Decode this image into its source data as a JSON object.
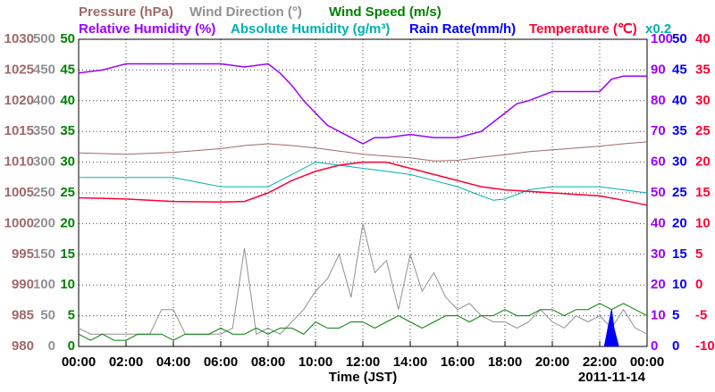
{
  "chart_data": {
    "type": "line",
    "xlabel": "Time (JST)",
    "date_label": "2011-11-14",
    "note": "x0.2",
    "note_color": "#00b0b0",
    "xlim": [
      0,
      24
    ],
    "xticks": [
      {
        "value": 0,
        "label": "00:00"
      },
      {
        "value": 2,
        "label": "02:00"
      },
      {
        "value": 4,
        "label": "04:00"
      },
      {
        "value": 6,
        "label": "06:00"
      },
      {
        "value": 8,
        "label": "08:00"
      },
      {
        "value": 10,
        "label": "10:00"
      },
      {
        "value": 12,
        "label": "12:00"
      },
      {
        "value": 14,
        "label": "14:00"
      },
      {
        "value": 16,
        "label": "16:00"
      },
      {
        "value": 18,
        "label": "18:00"
      },
      {
        "value": 20,
        "label": "20:00"
      },
      {
        "value": 22,
        "label": "22:00"
      },
      {
        "value": 24,
        "label": "00:00"
      }
    ],
    "grid": true,
    "axes": [
      {
        "side": "left",
        "color": "#a06868",
        "ylim": [
          980,
          1030
        ],
        "yticks": [
          980,
          985,
          990,
          995,
          1000,
          1005,
          1010,
          1015,
          1020,
          1025,
          1030
        ]
      },
      {
        "side": "left",
        "color": "#909090",
        "ylim": [
          0,
          500
        ],
        "yticks": [
          0,
          50,
          100,
          150,
          200,
          250,
          300,
          350,
          400,
          450,
          500
        ]
      },
      {
        "side": "left",
        "color": "#008000",
        "ylim": [
          0,
          50
        ],
        "yticks": [
          0,
          5,
          10,
          15,
          20,
          25,
          30,
          35,
          40,
          45,
          50
        ]
      },
      {
        "side": "right",
        "color": "#9900ff",
        "ylim": [
          0,
          100
        ],
        "yticks": [
          0,
          10,
          20,
          30,
          40,
          50,
          60,
          70,
          80,
          90,
          100
        ]
      },
      {
        "side": "right",
        "color": "#0000ff",
        "ylim": [
          0,
          50
        ],
        "yticks": [
          0,
          5,
          10,
          15,
          20,
          25,
          30,
          35,
          40,
          45,
          50
        ]
      },
      {
        "side": "right",
        "color": "#ff0033",
        "ylim": [
          -10,
          40
        ],
        "yticks": [
          -10,
          -5,
          0,
          5,
          10,
          15,
          20,
          25,
          30,
          35,
          40
        ]
      }
    ],
    "series": [
      {
        "name": "Pressure (hPa)",
        "color": "#a06868",
        "axis": 0,
        "x": [
          0,
          2,
          4,
          6,
          7,
          8,
          9,
          10,
          11,
          12,
          13,
          14,
          15,
          16,
          17,
          18,
          19,
          20,
          21,
          22,
          23,
          24
        ],
        "values": [
          1011.5,
          1011.3,
          1011.6,
          1012.2,
          1012.7,
          1013,
          1012.7,
          1012.3,
          1011.8,
          1011.3,
          1011,
          1010.7,
          1010.2,
          1010.3,
          1010.8,
          1011.2,
          1011.7,
          1012,
          1012.3,
          1012.6,
          1013,
          1013.3
        ]
      },
      {
        "name": "Wind Direction (°)",
        "color": "#909090",
        "axis": 1,
        "x": [
          0,
          0.5,
          1,
          1.5,
          2,
          2.5,
          3,
          3.5,
          4,
          4.5,
          5,
          5.5,
          6,
          6.5,
          7,
          7.5,
          8,
          8.5,
          9,
          9.5,
          10,
          10.5,
          11,
          11.5,
          12,
          12.5,
          13,
          13.5,
          14,
          14.5,
          15,
          15.5,
          16,
          16.5,
          17,
          17.5,
          18,
          18.5,
          19,
          19.5,
          20,
          20.5,
          21,
          21.5,
          22,
          22.5,
          23,
          23.5,
          24
        ],
        "values": [
          30,
          20,
          20,
          20,
          20,
          20,
          20,
          60,
          60,
          20,
          20,
          20,
          20,
          30,
          160,
          20,
          30,
          20,
          40,
          60,
          90,
          110,
          150,
          80,
          200,
          120,
          140,
          60,
          150,
          90,
          120,
          80,
          60,
          70,
          50,
          40,
          40,
          30,
          40,
          60,
          40,
          30,
          50,
          40,
          50,
          30,
          60,
          30,
          20
        ]
      },
      {
        "name": "Wind Speed (m/s)",
        "color": "#008000",
        "axis": 2,
        "x": [
          0,
          0.5,
          1,
          1.5,
          2,
          2.5,
          3,
          3.5,
          4,
          4.5,
          5,
          5.5,
          6,
          6.5,
          7,
          7.5,
          8,
          8.5,
          9,
          9.5,
          10,
          10.5,
          11,
          11.5,
          12,
          12.5,
          13,
          13.5,
          14,
          14.5,
          15,
          15.5,
          16,
          16.5,
          17,
          17.5,
          18,
          18.5,
          19,
          19.5,
          20,
          20.5,
          21,
          21.5,
          22,
          22.5,
          23,
          23.5,
          24
        ],
        "values": [
          2,
          1,
          2,
          1,
          1,
          2,
          2,
          2,
          1,
          2,
          2,
          2,
          3,
          2,
          2,
          3,
          2,
          3,
          3,
          2,
          4,
          3,
          3,
          4,
          4,
          3,
          4,
          5,
          4,
          3,
          4,
          5,
          5,
          4,
          5,
          5,
          6,
          5,
          5,
          6,
          6,
          5,
          6,
          6,
          7,
          6,
          7,
          6,
          5
        ]
      },
      {
        "name": "Relative Humidity (%)",
        "color": "#9900ff",
        "axis": 3,
        "x": [
          0,
          1,
          2,
          4,
          6,
          7,
          8,
          8.5,
          9,
          9.5,
          10,
          10.5,
          11,
          11.5,
          12,
          12.5,
          13,
          14,
          15,
          16,
          17,
          17.5,
          18,
          18.5,
          19,
          20,
          21,
          22,
          22.5,
          23,
          24
        ],
        "values": [
          89,
          90,
          92,
          92,
          92,
          91,
          92,
          89,
          85,
          80,
          76,
          72,
          70,
          68,
          66,
          68,
          68,
          69,
          68,
          68,
          70,
          73,
          76,
          79,
          80,
          83,
          83,
          83,
          87,
          88,
          88
        ]
      },
      {
        "name": "Absolute Humidity (g/m³)",
        "color": "#00b0b0",
        "axis": 4,
        "x": [
          0,
          2,
          4,
          6,
          8,
          9,
          10,
          11,
          12,
          13,
          14,
          15,
          16,
          17,
          17.5,
          18,
          19,
          20,
          22,
          24
        ],
        "values": [
          27.5,
          27.5,
          27.5,
          26,
          26,
          28,
          30,
          29.5,
          29,
          28.5,
          28,
          27,
          26,
          24.5,
          23.8,
          24,
          25.5,
          26,
          26,
          25
        ]
      },
      {
        "name": "Rain Rate(mm/h)",
        "color": "#0000ff",
        "axis": 4,
        "x": [
          22.2,
          22.4,
          22.5,
          22.6,
          22.8
        ],
        "values": [
          0,
          4,
          6,
          3,
          0
        ]
      },
      {
        "name": "Temperature (℃)",
        "color": "#ff0033",
        "axis": 5,
        "x": [
          0,
          2,
          4,
          6,
          7,
          8,
          9,
          10,
          11,
          12,
          13,
          14,
          15,
          16,
          17,
          18,
          20,
          22,
          23,
          24
        ],
        "values": [
          14.2,
          14,
          13.6,
          13.5,
          13.6,
          15,
          17,
          18.5,
          19.5,
          20,
          20,
          19,
          18,
          17,
          16,
          15.5,
          15,
          14.5,
          13.8,
          13
        ]
      }
    ]
  }
}
